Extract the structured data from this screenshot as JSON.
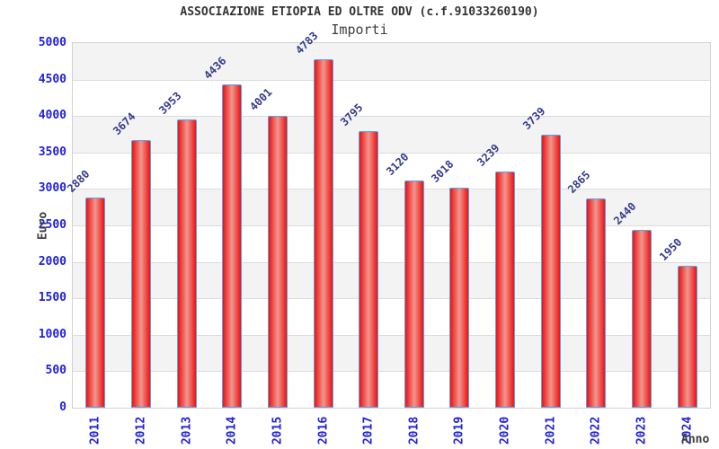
{
  "chart_data": {
    "type": "bar",
    "title": "ASSOCIAZIONE ETIOPIA ED OLTRE ODV (c.f.91033260190)",
    "subtitle": "Importi",
    "xlabel": "Anno",
    "ylabel": "Euro",
    "categories": [
      "2011",
      "2012",
      "2013",
      "2014",
      "2015",
      "2016",
      "2017",
      "2018",
      "2019",
      "2020",
      "2021",
      "2022",
      "2023",
      "2024"
    ],
    "values": [
      2880,
      3674,
      3953,
      4436,
      4001,
      4783,
      3795,
      3120,
      3018,
      3239,
      3739,
      2865,
      2440,
      1950
    ],
    "ylim": [
      0,
      5000
    ],
    "yticks": [
      0,
      500,
      1000,
      1500,
      2000,
      2500,
      3000,
      3500,
      4000,
      4500,
      5000
    ],
    "grid": "horizontal-bands-alternating",
    "legend": "none",
    "colors": {
      "title": "#333333",
      "subtitle": "#3d3d3d",
      "bar_fill_edge": "#ee1111",
      "bar_fill_center": "#f0978e",
      "bar_border": "#55a3ef",
      "value_label": "#333a8c",
      "tick_label": "#2020dd",
      "axis_title": "#3d3d3d",
      "band": "#f3f3f3",
      "band_alt": "#ffffff",
      "gridline": "#dcdcdc",
      "plot_border": "#d2d2d2"
    }
  }
}
